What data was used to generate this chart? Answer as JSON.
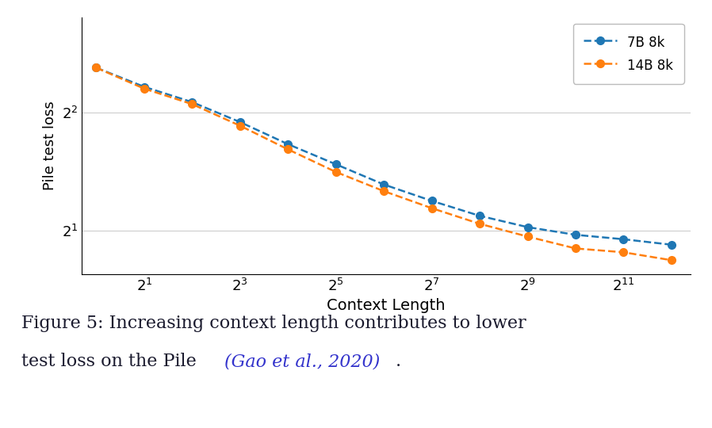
{
  "title": "",
  "xlabel": "Context Length",
  "ylabel": "Pile test loss",
  "x_values": [
    1,
    2,
    4,
    8,
    16,
    32,
    64,
    128,
    256,
    512,
    1024,
    2048,
    4096
  ],
  "y_7b": [
    5.2,
    4.65,
    4.25,
    3.78,
    3.32,
    2.95,
    2.62,
    2.38,
    2.18,
    2.04,
    1.95,
    1.9,
    1.84
  ],
  "y_14b": [
    5.2,
    4.6,
    4.2,
    3.7,
    3.22,
    2.82,
    2.52,
    2.28,
    2.08,
    1.93,
    1.8,
    1.76,
    1.68
  ],
  "color_7b": "#1f77b4",
  "color_14b": "#ff7f0e",
  "legend_7b": "7B 8k",
  "legend_14b": "14B 8k",
  "ytick_positions": [
    2,
    4
  ],
  "ytick_labels": [
    "$2^1$",
    "$2^2$"
  ],
  "xtick_positions": [
    2,
    8,
    32,
    128,
    512,
    2048
  ],
  "xtick_labels": [
    "$2^1$",
    "$2^3$",
    "$2^5$",
    "$2^7$",
    "$2^9$",
    "$2^{11}$"
  ],
  "caption_fontsize": 16,
  "caption_link_color": "#3333cc"
}
